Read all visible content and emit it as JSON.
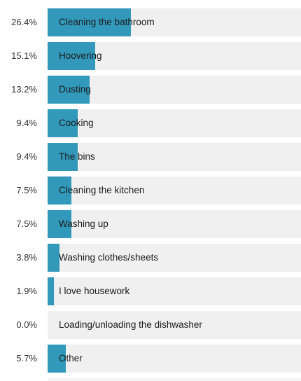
{
  "chart_data": {
    "type": "bar",
    "orientation": "horizontal",
    "categories": [
      "Cleaning the bathroom",
      "Hoovering",
      "Dusting",
      "Cooking",
      "The bins",
      "Cleaning the kitchen",
      "Washing up",
      "Washing clothes/sheets",
      "I love housework",
      "Loading/unloading the dishwasher",
      "Other"
    ],
    "values": [
      26.4,
      15.1,
      13.2,
      9.4,
      9.4,
      7.5,
      7.5,
      3.8,
      1.9,
      0.0,
      5.7
    ],
    "value_labels": [
      "26.4%",
      "15.1%",
      "13.2%",
      "9.4%",
      "9.4%",
      "7.5%",
      "7.5%",
      "3.8%",
      "1.9%",
      "0.0%",
      "5.7%"
    ],
    "xlim": [
      0,
      80
    ],
    "grid": false,
    "legend": "none"
  },
  "colors": {
    "bar": "#3399bb",
    "track": "#f0f0f0",
    "label_text": "#1a1a1a",
    "percent_text": "#333333"
  }
}
